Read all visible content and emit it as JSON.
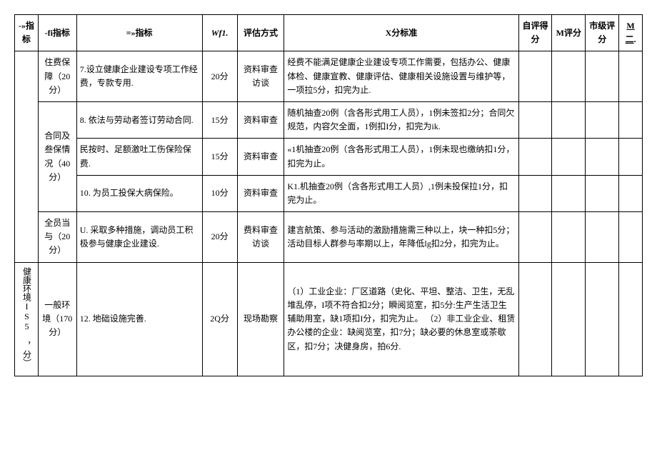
{
  "headers": {
    "c0": "-»指标",
    "c1": "-fi指标",
    "c2": "=»指标",
    "c3": "Wf1.",
    "c4": "评估方式",
    "c5": "X分标准",
    "c6": "自评得分",
    "c7": "M评分",
    "c8": "市级评分",
    "c9a": "M",
    "c9b": "二"
  },
  "rows": [
    {
      "sub": "住费保障（20分）",
      "item": "7.设立健康企业建设专项工作经费，专款专用.",
      "score": "20分",
      "method": "资料审查访谈",
      "standard": "经费不能满足健康企业建设专项工作需要，包括办公、健康体检、健康宣教、健康评估、健康相关设施设置与维护等，一项拉5分，扣完为止."
    },
    {
      "sub_rowspan": 3,
      "sub": "合同及叁保情况（40分）",
      "item": "8. 依法与劳动者签订劳动合同.",
      "score": "15分",
      "method": "资料审查",
      "standard": "随机抽查20例（含各形式用工人员），1例未签扣2分；合同欠规范，内容欠全面，1例扣I分，扣完为ik."
    },
    {
      "item": "民按时、足额激吐工伤保险保费.",
      "score": "15分",
      "method": "资料审查",
      "standard": "«1机抽查20例（含各形式用工人员），1例未现也缴纳扣1分，扣完为止。"
    },
    {
      "item": "10. 为员工投保大病保险。",
      "score": "10分",
      "method": "资料审查",
      "standard": "K1.机抽查20例（含各形式用工人员）,1例未投保拉1分，扣完为止。"
    },
    {
      "sub": "全员当与（20分）",
      "item": "U. 采取多种措施，调动员工积极参与健康企业建设.",
      "score": "20分",
      "method": "费料审查访谈",
      "standard": "建言航策、参与活动的激励措施需三种以上，块一种扣5分；活动目标人群参与率期以上，年降低lg扣2分，扣完为止。"
    },
    {
      "cat": "健康环境IS5 ，分）",
      "sub": "一般环境（170分）",
      "item": "12. 地础设施完善.",
      "score": "2Q分",
      "method": "现场勘察",
      "standard": "（1）工业企业：厂区道路（史化、平坦、整洁、卫生，无乱堆乱停，I项不符合扣2分；瞬阅览室，扣5分:生产生活卫生辅助用室，缺1项扣I分，扣完为止。\n（2）非工业企业、租赁办公楼的企业：缺阅览室，扣7分；缺必要的休息室或茶歇区，扣7分；决健身房，拍6分."
    }
  ],
  "style": {
    "border_color": "#000000",
    "background_color": "#ffffff",
    "text_color": "#000000",
    "font_size_body": 12,
    "font_size_header": 12
  }
}
